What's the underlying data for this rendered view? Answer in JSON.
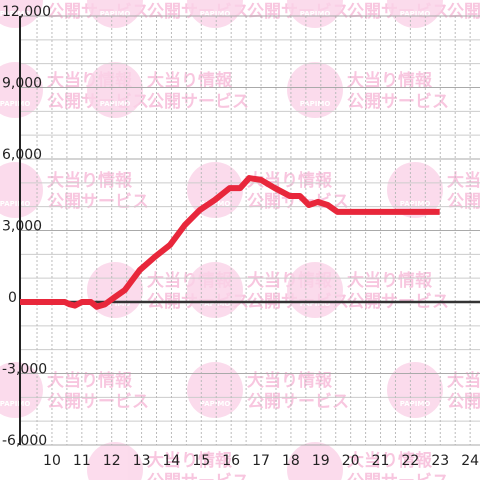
{
  "chart_data": {
    "type": "line",
    "x": [
      8.93,
      10.43,
      10.6,
      10.77,
      11.0,
      11.3,
      11.5,
      11.77,
      12.1,
      12.44,
      12.94,
      13.45,
      13.95,
      14.45,
      14.95,
      15.45,
      15.95,
      16.3,
      16.6,
      17.0,
      17.46,
      17.96,
      18.3,
      18.6,
      18.9,
      19.23,
      19.56,
      19.8,
      22.98
    ],
    "series": [
      {
        "color": "#e8273b",
        "values": [
          0,
          0,
          -100,
          -150,
          0,
          0,
          -200,
          -100,
          200,
          500,
          1340,
          1900,
          2390,
          3230,
          3860,
          4280,
          4780,
          4780,
          5200,
          5120,
          4780,
          4450,
          4450,
          4070,
          4200,
          4070,
          3780,
          3780,
          3780
        ]
      }
    ],
    "xlim": [
      8.93,
      24.33
    ],
    "xticks": [
      10,
      11,
      12,
      13,
      14,
      15,
      16,
      17,
      18,
      19,
      20,
      21,
      22,
      23,
      24
    ],
    "ylim": [
      -6000,
      12000
    ],
    "yticks": [
      {
        "value": -6000,
        "label": "-6,000"
      },
      {
        "value": -3000,
        "label": "-3,000"
      },
      0,
      {
        "value": 3000,
        "label": "3,000"
      },
      {
        "value": 6000,
        "label": "6,000"
      },
      {
        "value": 9000,
        "label": "9,000"
      },
      {
        "value": 12000,
        "label": "12,000"
      }
    ],
    "grid": true
  },
  "watermark": {
    "brand": "PAPIMO",
    "line1": "大当り情報",
    "line2": "公開サービス"
  }
}
